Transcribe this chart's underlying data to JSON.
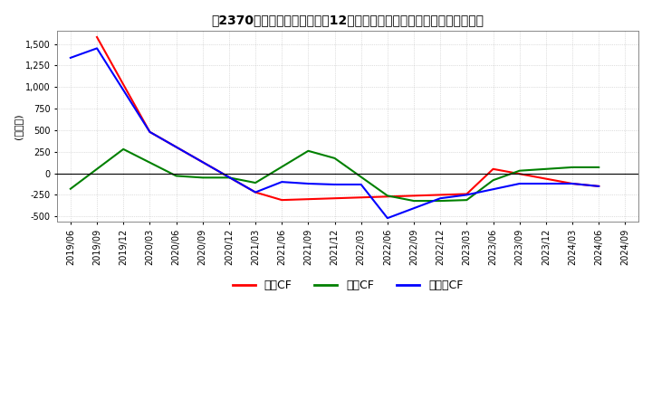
{
  "title": "　2370、キャッシュフローの12か月移動合計の対前年同期増減額の推移",
  "title_text": "【2370】キャッシュフローの12か月移動合計の対前年同期増減額の推移",
  "ylabel": "(百万円)",
  "ylim": [
    -560,
    1650
  ],
  "yticks": [
    -500,
    -250,
    0,
    250,
    500,
    750,
    1000,
    1250,
    1500
  ],
  "background_color": "#ffffff",
  "grid_color": "#bbbbbb",
  "x_labels": [
    "2019/06",
    "2019/09",
    "2019/12",
    "2020/03",
    "2020/06",
    "2020/09",
    "2020/12",
    "2021/03",
    "2021/06",
    "2021/09",
    "2021/12",
    "2022/03",
    "2022/06",
    "2022/09",
    "2022/12",
    "2023/03",
    "2023/06",
    "2023/09",
    "2023/12",
    "2024/03",
    "2024/06",
    "2024/09"
  ],
  "series": {
    "営業CF": {
      "color": "#ff0000",
      "values": [
        null,
        1580,
        null,
        480,
        null,
        null,
        null,
        -220,
        -310,
        null,
        -290,
        -280,
        null,
        -260,
        null,
        -240,
        50,
        null,
        null,
        -120,
        -150,
        null
      ]
    },
    "投資CF": {
      "color": "#008000",
      "values": [
        -180,
        null,
        280,
        null,
        -30,
        -50,
        -50,
        -110,
        null,
        260,
        175,
        null,
        -260,
        -320,
        -320,
        -310,
        -80,
        30,
        50,
        70,
        70,
        null
      ]
    },
    "フリーCF": {
      "color": "#0000ff",
      "values": [
        1340,
        1450,
        null,
        480,
        null,
        null,
        null,
        -220,
        -100,
        -120,
        -130,
        -130,
        -520,
        null,
        -290,
        -250,
        null,
        -120,
        -120,
        -120,
        -150,
        null
      ]
    }
  },
  "legend_labels": [
    "営業CF",
    "投資CF",
    "フリーCF"
  ],
  "legend_label_texts": [
    "営業CF",
    "投資CF",
    "フリーCF"
  ],
  "legend_colors": [
    "#ff0000",
    "#008000",
    "#0000ff"
  ]
}
